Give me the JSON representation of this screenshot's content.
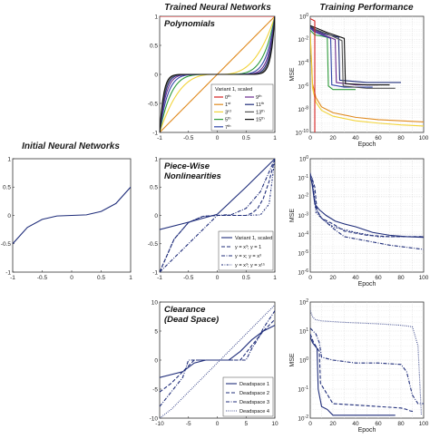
{
  "column_headers": {
    "initial": "Initial Neural Networks",
    "trained": "Trained Neural Networks",
    "performance": "Training Performance"
  },
  "colors": {
    "navy": "#1f2d7a",
    "red": "#d62020",
    "orange": "#e08a1e",
    "yellow": "#f2d43a",
    "green": "#2e9a3a",
    "purple": "#6a2c8e",
    "blue": "#3046a8",
    "black": "#111111"
  },
  "chart_data": [
    {
      "id": "initial",
      "type": "line",
      "title": "",
      "xlim": [
        -1,
        1
      ],
      "ylim": [
        -1,
        1
      ],
      "xticks": [
        "-1",
        "-0.5",
        "0",
        "0.5",
        "1"
      ],
      "yticks": [
        "1",
        "0.5",
        "0",
        "-0.5",
        "-1"
      ],
      "series": [
        {
          "x": [
            -1,
            -0.75,
            -0.5,
            -0.25,
            0,
            0.25,
            0.5,
            0.75,
            1
          ],
          "y": [
            -0.5,
            -0.21,
            -0.07,
            -0.01,
            0,
            0.01,
            0.07,
            0.21,
            0.5
          ],
          "color": "#1f2d7a",
          "dash": "solid"
        }
      ]
    },
    {
      "id": "polynomials",
      "type": "line",
      "title": "Polynomials",
      "xlim": [
        -1,
        1
      ],
      "ylim": [
        -1,
        1
      ],
      "xticks": [
        "-1",
        "-0.5",
        "0",
        "0.5",
        "1"
      ],
      "yticks": [
        "1",
        "0.5",
        "0",
        "-0.5",
        "-1"
      ],
      "legend_title": "Variant 1, scaled",
      "legend": [
        {
          "label": "0th",
          "color": "#d62020"
        },
        {
          "label": "1st",
          "color": "#e08a1e"
        },
        {
          "label": "3rd",
          "color": "#f2d43a"
        },
        {
          "label": "5th",
          "color": "#2e9a3a"
        },
        {
          "label": "7th",
          "color": "#3046a8"
        },
        {
          "label": "9th",
          "color": "#6a2c8e"
        },
        {
          "label": "11th",
          "color": "#1f2d7a"
        },
        {
          "label": "13th",
          "color": "#555555"
        },
        {
          "label": "15th",
          "color": "#111111"
        }
      ],
      "series": [
        {
          "exp": 0,
          "color": "#d62020",
          "width": 1.1
        },
        {
          "exp": 1,
          "color": "#e08a1e",
          "width": 1.1
        },
        {
          "exp": 3,
          "color": "#f2d43a",
          "width": 1.1
        },
        {
          "exp": 5,
          "color": "#2e9a3a",
          "width": 1.1
        },
        {
          "exp": 7,
          "color": "#3046a8",
          "width": 1.1
        },
        {
          "exp": 9,
          "color": "#6a2c8e",
          "width": 1.1
        },
        {
          "exp": 11,
          "color": "#1f2d7a",
          "width": 1.1
        },
        {
          "exp": 13,
          "color": "#555555",
          "width": 1.1
        },
        {
          "exp": 15,
          "color": "#111111",
          "width": 1.1
        }
      ]
    },
    {
      "id": "poly_perf",
      "type": "line",
      "log_y": true,
      "xlim": [
        0,
        100
      ],
      "ylim_exp": [
        -10,
        0
      ],
      "xticks": [
        "0",
        "20",
        "40",
        "60",
        "80",
        "100"
      ],
      "ytick_labels": [
        "10^0",
        "10^-2",
        "10^-4",
        "10^-6",
        "10^-8",
        "10^-10"
      ],
      "xlabel": "Epoch",
      "ylabel": "MSE",
      "series": [
        {
          "color": "#e08a1e",
          "x": [
            0,
            2,
            5,
            10,
            20,
            40,
            60,
            80,
            100
          ],
          "y": [
            -1.5,
            -5.8,
            -7.0,
            -7.8,
            -8.3,
            -8.7,
            -8.9,
            -9.0,
            -9.1
          ]
        },
        {
          "color": "#f2d43a",
          "x": [
            0,
            2,
            5,
            10,
            20,
            40,
            60,
            80,
            100
          ],
          "y": [
            -1.5,
            -6.2,
            -7.4,
            -8.1,
            -8.6,
            -9.0,
            -9.2,
            -9.35,
            -9.45
          ]
        },
        {
          "color": "#2e9a3a",
          "x": [
            0,
            2,
            4,
            10,
            15,
            16,
            20,
            40
          ],
          "y": [
            -1.2,
            -1.4,
            -1.6,
            -1.7,
            -1.8,
            -6.0,
            -6.3,
            -6.3
          ]
        },
        {
          "color": "#3046a8",
          "x": [
            0,
            3,
            10,
            18,
            19,
            30,
            55
          ],
          "y": [
            -1.0,
            -1.3,
            -1.6,
            -1.9,
            -5.9,
            -6.1,
            -6.1
          ]
        },
        {
          "color": "#6a2c8e",
          "x": [
            0,
            3,
            12,
            22,
            23,
            40,
            60
          ],
          "y": [
            -0.9,
            -1.2,
            -1.6,
            -2.0,
            -5.7,
            -5.9,
            -5.9
          ]
        },
        {
          "color": "#1f2d7a",
          "x": [
            0,
            3,
            12,
            25,
            26,
            50,
            80
          ],
          "y": [
            -0.9,
            -1.1,
            -1.5,
            -1.8,
            -5.5,
            -5.7,
            -5.7
          ]
        },
        {
          "color": "#555555",
          "x": [
            0,
            4,
            15,
            28,
            29,
            50,
            75
          ],
          "y": [
            -0.8,
            -1.1,
            -1.5,
            -2.1,
            -6.0,
            -6.2,
            -6.2
          ]
        },
        {
          "color": "#111111",
          "x": [
            0,
            5,
            15,
            30,
            31,
            50,
            70
          ],
          "y": [
            -0.8,
            -1.0,
            -1.4,
            -1.9,
            -5.8,
            -5.9,
            -5.9
          ]
        },
        {
          "color": "#d62020",
          "x": [
            0,
            4,
            4.01
          ],
          "y": [
            -0.2,
            -0.4,
            -10
          ]
        }
      ]
    },
    {
      "id": "piecewise",
      "type": "line",
      "title": "Piece-Wise Nonlinearities",
      "title_lines": [
        "Piece-Wise",
        "Nonlinearities"
      ],
      "xlim": [
        -1,
        1
      ],
      "ylim": [
        -1,
        1
      ],
      "xticks": [
        "-1",
        "-0.5",
        "0",
        "0.5",
        "1"
      ],
      "yticks": [
        "1",
        "0.5",
        "0",
        "-0.5",
        "-1"
      ],
      "legend": [
        {
          "label": "Variant 1, scaled",
          "dash": "solid"
        },
        {
          "label": "y = x³; y = 1",
          "dash": "dash"
        },
        {
          "label": "y = x; y = x³",
          "dash": "dashdot"
        },
        {
          "label": "y = x³; y = x¹⁵",
          "dash": "dashdot2"
        }
      ],
      "series": [
        {
          "dash": "solid",
          "x": [
            -1,
            -0.5,
            0,
            0.5,
            1
          ],
          "y": [
            -0.25,
            -0.12,
            0.02,
            0.5,
            1
          ]
        },
        {
          "dash": "dash",
          "x": [
            -1,
            -0.75,
            -0.5,
            -0.25,
            0,
            0.5,
            0.6,
            0.7,
            0.8,
            0.9,
            1
          ],
          "y": [
            -1,
            -0.42,
            -0.125,
            -0.016,
            0,
            0,
            0.04,
            0.12,
            0.3,
            0.6,
            1
          ]
        },
        {
          "dash": "dashdot",
          "x": [
            -1,
            -0.5,
            0,
            0.25,
            0.5,
            0.75,
            1
          ],
          "y": [
            -1,
            -0.5,
            0,
            0.016,
            0.125,
            0.42,
            1
          ]
        },
        {
          "dash": "dashdot2",
          "x": [
            -1,
            -0.75,
            -0.5,
            -0.25,
            0,
            0.5,
            0.75,
            0.9,
            1
          ],
          "y": [
            -1,
            -0.42,
            -0.125,
            -0.016,
            0,
            0,
            0.01,
            0.2,
            1
          ]
        }
      ]
    },
    {
      "id": "pw_perf",
      "type": "line",
      "log_y": true,
      "xlim": [
        0,
        100
      ],
      "ylim_exp": [
        -7,
        1
      ],
      "xticks": [
        "0",
        "20",
        "40",
        "60",
        "80",
        "100"
      ],
      "ytick_labels": [
        "10^0",
        "10^-1",
        "10^-2",
        "10^-3",
        "10^-4",
        "10^-5",
        "10^-6"
      ],
      "xlabel": "Epoch",
      "ylabel": "MSE",
      "series": [
        {
          "dash": "solid",
          "x": [
            0,
            2,
            4,
            8,
            14,
            22,
            30,
            40,
            55,
            70,
            85,
            100
          ],
          "y": [
            0,
            -1.0,
            -2.2,
            -2.6,
            -3.0,
            -3.4,
            -3.6,
            -3.8,
            -4.2,
            -4.4,
            -4.5,
            -4.55
          ]
        },
        {
          "dash": "dash",
          "x": [
            0,
            2,
            4,
            6,
            10,
            20,
            30,
            50,
            70,
            100
          ],
          "y": [
            -0.1,
            -0.5,
            -1.0,
            -2.7,
            -3.2,
            -3.6,
            -4.1,
            -4.4,
            -4.5,
            -4.5
          ]
        },
        {
          "dash": "dashdot",
          "x": [
            0,
            2,
            5,
            10,
            20,
            30,
            50,
            70,
            90,
            100
          ],
          "y": [
            -0.3,
            -0.8,
            -2.5,
            -3.2,
            -3.9,
            -4.5,
            -4.8,
            -5.1,
            -5.3,
            -5.4
          ]
        },
        {
          "dash": "dashdot2",
          "x": [
            0,
            2,
            3,
            5,
            10,
            20,
            40,
            60,
            80,
            100
          ],
          "y": [
            -0.2,
            -0.4,
            -1.2,
            -2.8,
            -3.2,
            -3.8,
            -4.2,
            -4.5,
            -4.5,
            -4.5
          ]
        }
      ]
    },
    {
      "id": "clearance",
      "type": "line",
      "title": "Clearance (Dead Space)",
      "title_lines": [
        "Clearance",
        "(Dead Space)"
      ],
      "xlim": [
        -10,
        10
      ],
      "ylim": [
        -10,
        10
      ],
      "xticks": [
        "-10",
        "-5",
        "0",
        "5",
        "10"
      ],
      "yticks": [
        "10",
        "5",
        "0",
        "-5",
        "-10"
      ],
      "legend": [
        {
          "label": "Deadspace 1",
          "dash": "solid"
        },
        {
          "label": "Deadspace 2",
          "dash": "dash"
        },
        {
          "label": "Deadspace 3",
          "dash": "dashdot"
        },
        {
          "label": "Deadspace 4",
          "dash": "dot"
        }
      ],
      "series": [
        {
          "dash": "solid",
          "x": [
            -10,
            -6,
            -4,
            -2,
            2,
            4,
            6,
            8,
            10
          ],
          "y": [
            -3,
            -2,
            -0.5,
            0,
            0,
            1.5,
            3.5,
            5,
            6
          ]
        },
        {
          "dash": "dash",
          "x": [
            -10,
            -8,
            -6,
            -4,
            4,
            6,
            8,
            10
          ],
          "y": [
            -5.5,
            -4,
            -2,
            0,
            0,
            2.5,
            5,
            7
          ]
        },
        {
          "dash": "dashdot",
          "x": [
            -10,
            -8,
            -6,
            -5,
            5,
            6,
            7,
            8,
            10
          ],
          "y": [
            -8,
            -5.5,
            -3,
            0,
            0,
            2,
            3.5,
            5.5,
            8.5
          ]
        },
        {
          "dash": "dot",
          "x": [
            -10,
            -8,
            -6,
            -4,
            -2,
            0,
            2,
            4,
            6,
            8,
            10
          ],
          "y": [
            -10,
            -8.5,
            -6.5,
            -4.5,
            -2.5,
            -0.5,
            1.5,
            3.5,
            5.5,
            7.5,
            9.5
          ]
        }
      ]
    },
    {
      "id": "cl_perf",
      "type": "line",
      "log_y": true,
      "xlim": [
        0,
        100
      ],
      "ylim_exp": [
        -2,
        2
      ],
      "xticks": [
        "0",
        "20",
        "40",
        "60",
        "80",
        "100"
      ],
      "ytick_labels": [
        "10^2",
        "10^1",
        "10^0",
        "10^-1",
        "10^-2"
      ],
      "xlabel": "Epoch",
      "ylabel": "MSE",
      "series": [
        {
          "dash": "solid",
          "x": [
            0,
            2,
            6,
            7,
            10,
            15,
            20,
            30,
            50,
            70,
            75
          ],
          "y": [
            0.8,
            0.6,
            0.4,
            -1.0,
            -1.6,
            -1.7,
            -1.9,
            -1.9,
            -1.9,
            -1.9,
            -1.9
          ]
        },
        {
          "dash": "dash",
          "x": [
            0,
            3,
            8,
            9,
            20,
            40,
            60,
            80,
            85,
            88,
            92
          ],
          "y": [
            0.9,
            0.6,
            0.3,
            -0.8,
            -1.5,
            -1.55,
            -1.6,
            -1.65,
            -1.7,
            -1.75,
            -1.78
          ]
        },
        {
          "dash": "dashdot",
          "x": [
            0,
            5,
            8,
            10,
            20,
            40,
            60,
            80,
            85,
            90,
            95,
            100
          ],
          "y": [
            1.1,
            0.9,
            0.6,
            0.1,
            0.0,
            -0.1,
            -0.1,
            -0.15,
            -0.4,
            -1.2,
            -1.5,
            -1.5
          ]
        },
        {
          "dash": "dot",
          "x": [
            0,
            2,
            4,
            10,
            30,
            60,
            80,
            90,
            95,
            98
          ],
          "y": [
            1.7,
            1.5,
            1.4,
            1.35,
            1.3,
            1.25,
            1.2,
            1.15,
            0.5,
            -1.9
          ]
        }
      ]
    }
  ]
}
